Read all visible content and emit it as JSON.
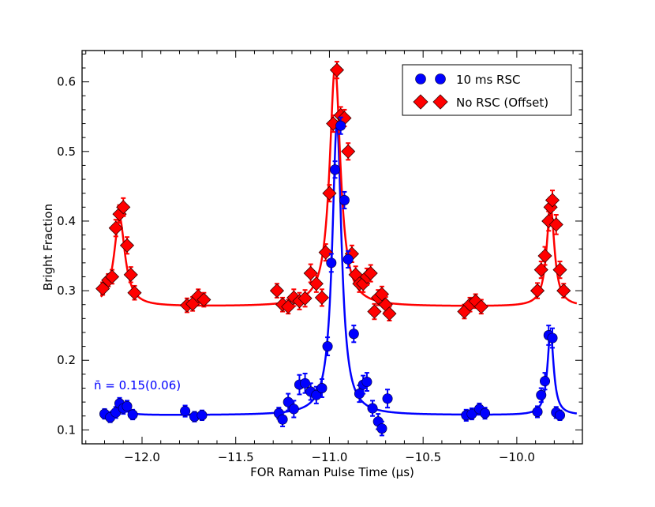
{
  "chart_data": {
    "type": "scatter",
    "title": "",
    "xlabel": "FOR Raman Pulse Time (μs)",
    "ylabel": "Bright Fraction",
    "xlim": [
      -12.32,
      -9.65
    ],
    "ylim": [
      0.08,
      0.645
    ],
    "xticks": [
      -12.0,
      -11.5,
      -11.0,
      -10.5,
      -10.0
    ],
    "xtick_labels": [
      "−12.0",
      "−11.5",
      "−11.0",
      "−10.5",
      "−10.0"
    ],
    "yticks": [
      0.1,
      0.2,
      0.3,
      0.4,
      0.5,
      0.6
    ],
    "ytick_labels": [
      "0.1",
      "0.2",
      "0.3",
      "0.4",
      "0.5",
      "0.6"
    ],
    "legend_position": "top-right",
    "annotation": {
      "text": "n̄ = 0.15(0.06)",
      "color": "#0000ff"
    },
    "series": [
      {
        "name": "10 ms RSC",
        "marker": "circle",
        "color": "#0000ff",
        "fit": {
          "baseline": 0.121,
          "peaks": [
            [
              -12.12,
              0.017,
              0.03
            ],
            [
              -10.96,
              0.42,
              0.03
            ],
            [
              -9.82,
              0.12,
              0.02
            ]
          ]
        },
        "x": [
          -12.2,
          -12.17,
          -12.14,
          -12.12,
          -12.1,
          -12.08,
          -12.05,
          -11.77,
          -11.72,
          -11.68,
          -11.27,
          -11.25,
          -11.22,
          -11.19,
          -11.16,
          -11.13,
          -11.1,
          -11.07,
          -11.04,
          -11.01,
          -10.99,
          -10.97,
          -10.94,
          -10.92,
          -10.9,
          -10.87,
          -10.84,
          -10.82,
          -10.8,
          -10.77,
          -10.74,
          -10.72,
          -10.69,
          -10.27,
          -10.24,
          -10.2,
          -10.17,
          -9.89,
          -9.87,
          -9.85,
          -9.83,
          -9.81,
          -9.79,
          -9.77
        ],
        "y": [
          0.123,
          0.118,
          0.125,
          0.138,
          0.131,
          0.134,
          0.122,
          0.127,
          0.119,
          0.121,
          0.124,
          0.115,
          0.14,
          0.13,
          0.165,
          0.167,
          0.155,
          0.15,
          0.16,
          0.22,
          0.34,
          0.474,
          0.537,
          0.43,
          0.345,
          0.238,
          0.152,
          0.165,
          0.169,
          0.131,
          0.112,
          0.102,
          0.145,
          0.121,
          0.123,
          0.13,
          0.124,
          0.126,
          0.15,
          0.17,
          0.236,
          0.232,
          0.125,
          0.121
        ],
        "yerr": [
          0.007,
          0.007,
          0.008,
          0.008,
          0.008,
          0.008,
          0.007,
          0.008,
          0.007,
          0.007,
          0.008,
          0.01,
          0.012,
          0.012,
          0.014,
          0.014,
          0.012,
          0.012,
          0.013,
          0.013,
          0.013,
          0.012,
          0.012,
          0.012,
          0.012,
          0.012,
          0.012,
          0.013,
          0.013,
          0.011,
          0.011,
          0.01,
          0.013,
          0.008,
          0.008,
          0.008,
          0.008,
          0.008,
          0.01,
          0.012,
          0.014,
          0.014,
          0.008,
          0.007
        ]
      },
      {
        "name": "No RSC (Offset)",
        "marker": "diamond",
        "color": "#ff0000",
        "fit": {
          "baseline": 0.277,
          "peaks": [
            [
              -12.12,
              0.128,
              0.035
            ],
            [
              -10.97,
              0.345,
              0.035
            ],
            [
              -9.82,
              0.145,
              0.025
            ]
          ]
        },
        "x": [
          -12.21,
          -12.18,
          -12.16,
          -12.14,
          -12.12,
          -12.1,
          -12.08,
          -12.06,
          -12.04,
          -11.76,
          -11.73,
          -11.7,
          -11.67,
          -11.28,
          -11.25,
          -11.22,
          -11.19,
          -11.16,
          -11.13,
          -11.1,
          -11.07,
          -11.04,
          -11.02,
          -11.0,
          -10.98,
          -10.96,
          -10.94,
          -10.92,
          -10.9,
          -10.88,
          -10.86,
          -10.84,
          -10.82,
          -10.8,
          -10.78,
          -10.76,
          -10.74,
          -10.72,
          -10.7,
          -10.68,
          -10.28,
          -10.25,
          -10.22,
          -10.19,
          -9.89,
          -9.87,
          -9.85,
          -9.83,
          -9.82,
          -9.81,
          -9.79,
          -9.77,
          -9.75
        ],
        "y": [
          0.303,
          0.315,
          0.32,
          0.39,
          0.41,
          0.42,
          0.365,
          0.323,
          0.297,
          0.279,
          0.281,
          0.292,
          0.287,
          0.3,
          0.28,
          0.277,
          0.29,
          0.285,
          0.289,
          0.325,
          0.31,
          0.29,
          0.355,
          0.44,
          0.54,
          0.617,
          0.552,
          0.548,
          0.5,
          0.353,
          0.323,
          0.31,
          0.31,
          0.32,
          0.325,
          0.27,
          0.29,
          0.295,
          0.28,
          0.267,
          0.27,
          0.28,
          0.285,
          0.277,
          0.3,
          0.33,
          0.35,
          0.4,
          0.42,
          0.43,
          0.395,
          0.33,
          0.3
        ],
        "yerr": [
          0.009,
          0.009,
          0.01,
          0.012,
          0.013,
          0.013,
          0.012,
          0.011,
          0.01,
          0.01,
          0.01,
          0.01,
          0.01,
          0.01,
          0.01,
          0.01,
          0.012,
          0.012,
          0.012,
          0.013,
          0.012,
          0.012,
          0.012,
          0.012,
          0.012,
          0.012,
          0.012,
          0.012,
          0.012,
          0.012,
          0.012,
          0.012,
          0.012,
          0.012,
          0.012,
          0.011,
          0.011,
          0.011,
          0.011,
          0.01,
          0.01,
          0.01,
          0.01,
          0.01,
          0.011,
          0.012,
          0.013,
          0.014,
          0.014,
          0.014,
          0.014,
          0.012,
          0.01
        ]
      }
    ]
  }
}
